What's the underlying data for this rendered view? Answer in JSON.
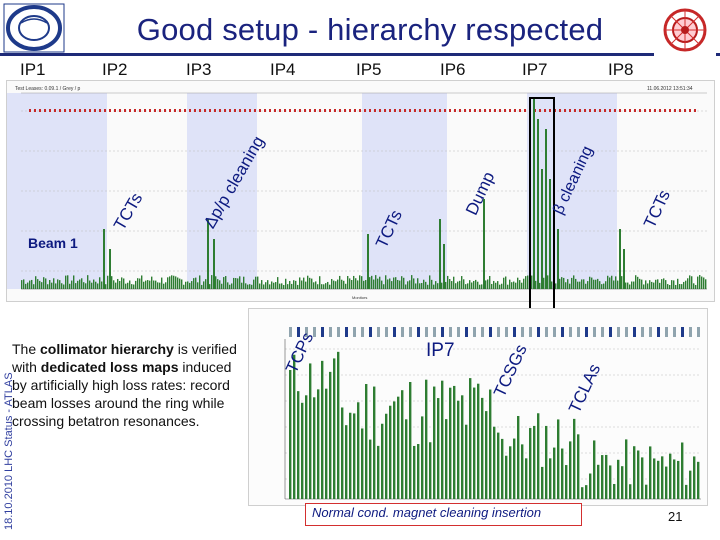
{
  "header": {
    "title": "Good setup - hierarchy respected"
  },
  "ip_labels": [
    "IP1",
    "IP2",
    "IP3",
    "IP4",
    "IP5",
    "IP6",
    "IP7",
    "IP8"
  ],
  "upper_plot": {
    "beam_label": "Beam 1",
    "annotations": {
      "tcts_left": "TCTs",
      "dp_cleaning": "Δp/p cleaning",
      "tcts_ip5": "TCTs",
      "dump": "Dump",
      "b_cleaning": "β cleaning",
      "tcts_right": "TCTs"
    },
    "header_readout": "Test Leases: 0.09.1 / Grey / p",
    "timestamp": "11.06.2012 13:51:34",
    "x_axis_label": "Monitors"
  },
  "lower_plot": {
    "ip_label": "IP7",
    "annotations": {
      "tcps": "TCPs",
      "tcsgs": "TCSGs",
      "tclas": "TCLAs"
    }
  },
  "description": {
    "part1": "The ",
    "bold1": "collimator hierarchy",
    "part2": " is verified with ",
    "bold2": "dedicated loss maps",
    "part3": " induced by artificially high loss rates: record beam losses around the ring while crossing betatron resonances."
  },
  "sidebar": {
    "label": "18.10.2010      LHC Status - ATLAS"
  },
  "caption": {
    "text": "Normal cond. magnet cleaning insertion"
  },
  "footer": {
    "page_number": "21"
  },
  "colors": {
    "title": "#1a237e",
    "accent": "#0d1a80",
    "loss_bar": "#2e7d32",
    "cold_band": "#c8d0f5",
    "caption_border": "#d32f2f"
  }
}
